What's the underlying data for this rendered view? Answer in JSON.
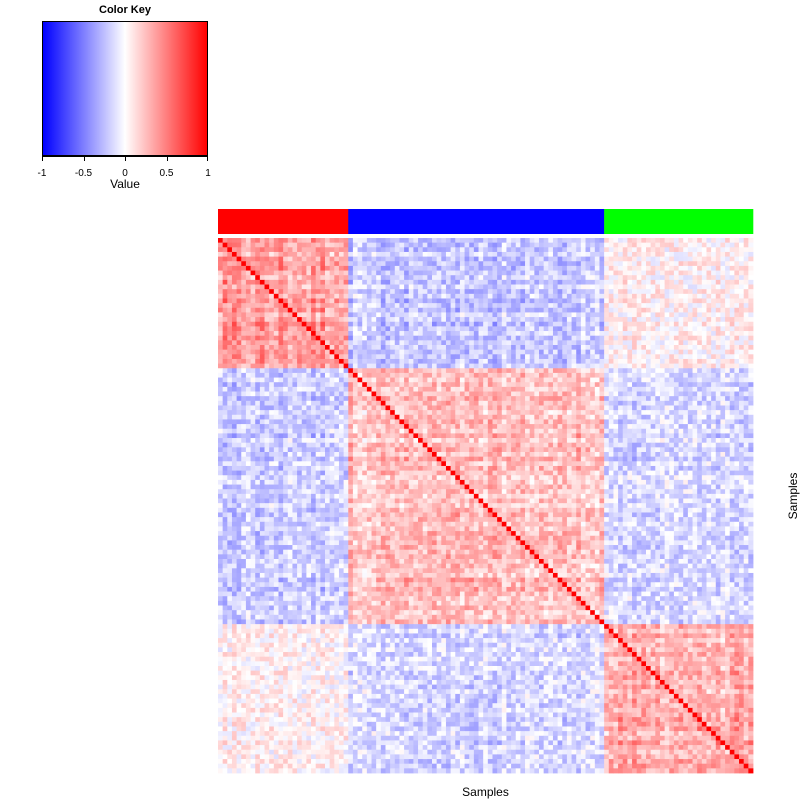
{
  "chart_data": {
    "type": "heatmap",
    "title": "",
    "xlabel": "Samples",
    "ylabel": "Samples",
    "n_samples": 115,
    "value_range": [
      -1,
      1
    ],
    "diagonal_value": 1,
    "groups": [
      {
        "color": "#ff0000",
        "count": 28
      },
      {
        "color": "#0000ff",
        "count": 55
      },
      {
        "color": "#00ff00",
        "count": 32
      }
    ],
    "block_mean_correlation": [
      [
        0.35,
        -0.2,
        0.05
      ],
      [
        -0.2,
        0.25,
        -0.15
      ],
      [
        0.05,
        -0.15,
        0.3
      ]
    ],
    "color_key": {
      "title": "Color Key",
      "xlabel": "Value",
      "ticks": [
        "-1",
        "-0.5",
        "0",
        "0.5",
        "1"
      ],
      "tick_values": [
        -1,
        -0.5,
        0,
        0.5,
        1
      ],
      "low_color": "#0000ff",
      "mid_color": "#ffffff",
      "high_color": "#ff0000"
    }
  }
}
